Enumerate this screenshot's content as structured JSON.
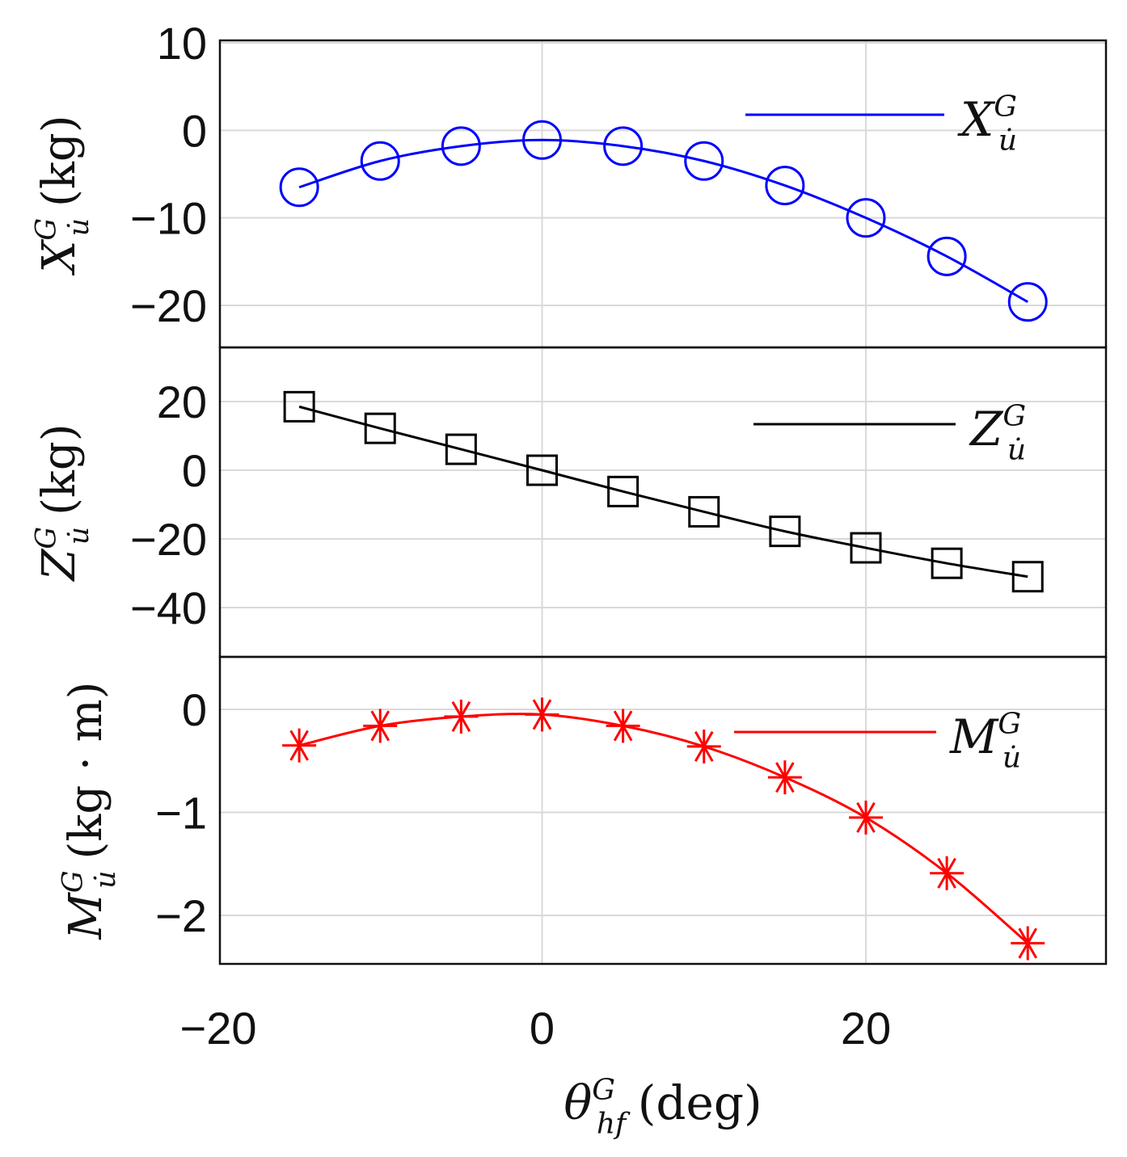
{
  "chart_data": {
    "type": "line",
    "shared_x": {
      "label_main": "θ",
      "label_sup": "G",
      "label_sub": "hf",
      "label_unit": "(deg)",
      "xlim": [
        -20,
        35
      ],
      "ticks": [
        -20,
        0,
        20
      ],
      "tick_labels": [
        "−20",
        "0",
        "20"
      ],
      "grid": true
    },
    "panels": [
      {
        "ylabel_main": "X",
        "ylabel_sup": "G",
        "ylabel_sub": "u̇",
        "ylabel_unit": "(kg)",
        "ylim": [
          -25,
          10
        ],
        "yticks": [
          10,
          0,
          -10,
          -20
        ],
        "ytick_labels": [
          "10",
          "0",
          "−10",
          "−20"
        ],
        "grid": true,
        "legend_placement": "top-right",
        "series": [
          {
            "name_main": "X",
            "name_sup": "G",
            "name_sub": "u̇",
            "color": "#0000ff",
            "marker": "circle",
            "x": [
              -15,
              -10,
              -5,
              0,
              5,
              10,
              15,
              20,
              25,
              30
            ],
            "y": [
              -6.5,
              -3.5,
              -1.8,
              -1.1,
              -1.8,
              -3.5,
              -6.3,
              -10.0,
              -14.4,
              -19.6
            ]
          }
        ]
      },
      {
        "ylabel_main": "Z",
        "ylabel_sup": "G",
        "ylabel_sub": "u̇",
        "ylabel_unit": "(kg)",
        "ylim": [
          -55,
          35
        ],
        "yticks": [
          20,
          0,
          -20,
          -40
        ],
        "ytick_labels": [
          "20",
          "0",
          "−20",
          "−40"
        ],
        "grid": true,
        "legend_placement": "top-right",
        "series": [
          {
            "name_main": "Z",
            "name_sup": "G",
            "name_sub": "u̇",
            "color": "#000000",
            "marker": "square",
            "x": [
              -15,
              -10,
              -5,
              0,
              5,
              10,
              15,
              20,
              25,
              30
            ],
            "y": [
              18.5,
              12.2,
              6.1,
              0.0,
              -6.2,
              -12.1,
              -17.8,
              -22.6,
              -27.1,
              -31.0
            ]
          }
        ]
      },
      {
        "ylabel_main": "M",
        "ylabel_sup": "G",
        "ylabel_sub": "u̇",
        "ylabel_unit": "(kg · m)",
        "ylim": [
          -2.5,
          0.5
        ],
        "yticks": [
          0,
          -1,
          -2
        ],
        "ytick_labels": [
          "0",
          "−1",
          "−2"
        ],
        "grid": true,
        "legend_placement": "top-right",
        "series": [
          {
            "name_main": "M",
            "name_sup": "G",
            "name_sub": "u̇",
            "color": "#ff0000",
            "marker": "asterisk",
            "x": [
              -15,
              -10,
              -5,
              0,
              5,
              10,
              15,
              20,
              25,
              30
            ],
            "y": [
              -0.35,
              -0.16,
              -0.07,
              -0.05,
              -0.16,
              -0.36,
              -0.66,
              -1.05,
              -1.59,
              -2.27
            ]
          }
        ]
      }
    ]
  }
}
